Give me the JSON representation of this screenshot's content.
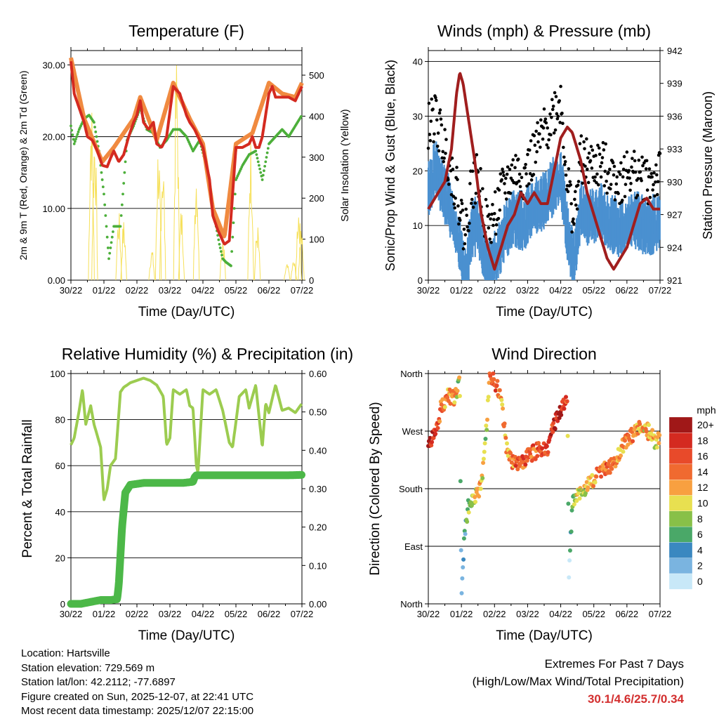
{
  "panels": {
    "temperature": {
      "title": "Temperature (F)",
      "ylabel_left": "2m & 9m T (Red, Orange) & 2m Td (Green)",
      "ylabel_right": "Solar Insolation (Yellow)",
      "xlabel": "Time (Day/UTC)"
    },
    "winds": {
      "title": "Winds (mph) & Pressure (mb)",
      "ylabel_left": "Sonic/Prop Wind & Gust (Blue, Black)",
      "ylabel_right": "Station Pressure (Maroon)",
      "xlabel": "Time (Day/UTC)"
    },
    "humidity": {
      "title": "Relative Humidity (%) & Precipitation (in)",
      "ylabel_left": "Percent & Total Rainfall",
      "xlabel": "Time (Day/UTC)"
    },
    "direction": {
      "title": "Wind Direction",
      "ylabel_left": "Direction (Colored By Speed)",
      "xlabel": "Time (Day/UTC)",
      "legend_title": "mph",
      "legend_labels": [
        "20+",
        "18",
        "16",
        "14",
        "12",
        "10",
        "8",
        "6",
        "4",
        "2",
        "0"
      ]
    }
  },
  "station": {
    "location": "Location: Hartsville",
    "elevation": "Station elevation: 729.569 m",
    "latlon": "Station lat/lon: 42.2112; -77.6897",
    "created": "Figure created on Sun, 2025-12-07, at 22:41 UTC",
    "recent": "Most recent data timestamp: 2025/12/07 22:15:00"
  },
  "extremes": {
    "line1": "Extremes For Past 7 Days",
    "line2": "(High/Low/Max Wind/Total Precipitation)",
    "values": "30.1/4.6/25.7/0.34"
  },
  "colors": {
    "temp2m": "#d42a20",
    "temp9m": "#f08a40",
    "dewpoint": "#4caf3a",
    "solar": "#f6e05a",
    "wind": "#4a90d0",
    "gust": "#000000",
    "pressure": "#a01e1e",
    "rh": "#9ccc50",
    "precip": "#4cb848",
    "speed_scale": [
      "#a01818",
      "#d42a20",
      "#e84a2a",
      "#f06a30",
      "#f8a040",
      "#e8e050",
      "#88c048",
      "#4aa868",
      "#3a88c0",
      "#7ab4e0",
      "#c8e8f8"
    ]
  },
  "chart_data": [
    {
      "type": "line",
      "title": "Temperature (F)",
      "xlabel": "Time (Day/UTC)",
      "ylabel": "2m & 9m T (Red, Orange) & 2m Td (Green)",
      "x_ticks": [
        "30/22",
        "01/22",
        "02/22",
        "03/22",
        "04/22",
        "05/22",
        "06/22",
        "07/22"
      ],
      "x_range": [
        0,
        7
      ],
      "ylim": [
        0,
        32
      ],
      "y_ticks": [
        "0.00",
        "10.00",
        "20.00",
        "30.00"
      ],
      "y_right_label": "Solar Insolation (Yellow)",
      "y_right_lim": [
        0,
        560
      ],
      "y_right_ticks": [
        "0",
        "100",
        "200",
        "300",
        "400",
        "500"
      ],
      "series": [
        {
          "name": "2m T",
          "x": [
            0,
            0.1,
            0.25,
            0.4,
            0.5,
            0.65,
            0.8,
            0.95,
            1.1,
            1.2,
            1.3,
            1.45,
            1.6,
            1.75,
            1.9,
            2.0,
            2.1,
            2.2,
            2.35,
            2.5,
            2.6,
            2.75,
            2.9,
            3.1,
            3.3,
            3.5,
            3.6,
            3.75,
            3.9,
            4.0,
            4.2,
            4.3,
            4.45,
            4.55,
            4.65,
            4.8,
            5.0,
            5.2,
            5.4,
            5.5,
            5.6,
            5.7,
            5.8,
            5.9,
            6.0,
            6.1,
            6.2,
            6.4,
            6.6,
            6.8,
            7.0
          ],
          "values": [
            30.5,
            26,
            24,
            22,
            20,
            19.5,
            18,
            16,
            15.8,
            17,
            18,
            16.5,
            17.5,
            20,
            22,
            23,
            25,
            22,
            21,
            22,
            19,
            18.5,
            20,
            27,
            26,
            23,
            22,
            21,
            19.5,
            18.5,
            14,
            9,
            7,
            6,
            5,
            5.5,
            18.5,
            18.5,
            19,
            20,
            18.5,
            18.5,
            20,
            23,
            26,
            27,
            25.5,
            25.5,
            25.5,
            25,
            27
          ]
        },
        {
          "name": "9m T",
          "x": [
            0,
            0.4,
            0.95,
            1.3,
            1.9,
            2.1,
            2.6,
            3.1,
            3.6,
            4.0,
            4.3,
            4.65,
            5.0,
            5.5,
            6.0,
            6.4,
            6.8,
            7.0
          ],
          "values": [
            31,
            22.5,
            16.5,
            18.5,
            22.5,
            25.5,
            19.5,
            27.5,
            22.5,
            19,
            10,
            6,
            19,
            20.5,
            27.5,
            26,
            25.5,
            27.5
          ]
        },
        {
          "name": "2m Td",
          "x": [
            0,
            0.1,
            0.25,
            0.4,
            0.55,
            0.7,
            0.85,
            1.0,
            1.15,
            1.3,
            1.5,
            1.7,
            1.9,
            2.1,
            2.3,
            2.5,
            2.7,
            2.9,
            3.1,
            3.3,
            3.5,
            3.7,
            3.9,
            4.1,
            4.3,
            4.5,
            4.6,
            4.7,
            4.85,
            5.0,
            5.2,
            5.4,
            5.6,
            5.8,
            6.0,
            6.2,
            6.4,
            6.6,
            6.8,
            7.0
          ],
          "values": [
            21.5,
            19,
            21,
            22.5,
            23,
            22,
            18,
            12,
            3,
            7.5,
            7.5,
            19.5,
            21.5,
            24,
            21,
            20.5,
            18.5,
            19.5,
            21,
            21,
            20,
            18,
            19.5,
            16,
            10,
            5,
            3,
            2.5,
            2,
            14,
            16,
            17.5,
            18,
            14,
            19,
            20,
            21,
            20,
            21.5,
            23
          ]
        }
      ]
    },
    {
      "type": "line",
      "title": "Winds (mph) & Pressure (mb)",
      "xlabel": "Time (Day/UTC)",
      "ylabel": "Sonic/Prop Wind & Gust (Blue, Black)",
      "x_ticks": [
        "30/22",
        "01/22",
        "02/22",
        "03/22",
        "04/22",
        "05/22",
        "06/22",
        "07/22"
      ],
      "x_range": [
        0,
        7
      ],
      "ylim": [
        0,
        42
      ],
      "y_ticks": [
        "0",
        "10",
        "20",
        "30",
        "40"
      ],
      "y_right_label": "Station Pressure (Maroon)",
      "y_right_lim": [
        921,
        942
      ],
      "y_right_ticks": [
        "921",
        "924",
        "927",
        "930",
        "933",
        "936",
        "939",
        "942"
      ],
      "series": [
        {
          "name": "Wind",
          "x": [
            0,
            0.2,
            0.5,
            0.7,
            0.95,
            1.1,
            1.3,
            1.5,
            1.8,
            2.0,
            2.3,
            2.6,
            2.9,
            3.2,
            3.5,
            3.8,
            4.0,
            4.2,
            4.4,
            4.6,
            4.9,
            5.2,
            5.5,
            5.8,
            6.1,
            6.4,
            6.7,
            7.0
          ],
          "values": [
            18,
            22,
            17,
            14,
            8,
            1,
            10,
            12,
            3,
            5,
            10,
            13,
            12,
            15,
            16,
            19,
            21,
            10,
            5,
            14,
            13,
            14,
            12,
            11,
            13,
            12,
            11,
            13
          ]
        },
        {
          "name": "Gust",
          "x": [
            0,
            0.2,
            0.5,
            0.7,
            0.95,
            1.1,
            1.3,
            1.5,
            1.8,
            2.0,
            2.3,
            2.6,
            2.9,
            3.2,
            3.5,
            3.8,
            4.0,
            4.2,
            4.4,
            4.6,
            4.9,
            5.2,
            5.5,
            5.8,
            6.1,
            6.4,
            6.7,
            7.0
          ],
          "values": [
            28,
            30,
            24,
            20,
            14,
            8,
            17,
            19,
            9,
            12,
            17,
            20,
            19,
            23,
            27,
            31,
            33,
            18,
            11,
            22,
            21,
            21,
            20,
            18,
            20,
            19,
            18,
            19
          ]
        },
        {
          "name": "Pressure",
          "x": [
            0,
            0.1,
            0.3,
            0.5,
            0.7,
            0.85,
            0.95,
            1.05,
            1.2,
            1.4,
            1.6,
            1.8,
            2.0,
            2.2,
            2.4,
            2.6,
            2.8,
            3.0,
            3.2,
            3.4,
            3.6,
            3.8,
            4.0,
            4.2,
            4.35,
            4.6,
            4.8,
            5.0,
            5.2,
            5.4,
            5.6,
            5.7,
            5.8,
            6.0,
            6.2,
            6.4,
            6.6,
            6.8,
            7.0
          ],
          "values": [
            927.5,
            928,
            929,
            930,
            933,
            938,
            940,
            939,
            936,
            932,
            927,
            924,
            922,
            924,
            926,
            927,
            929,
            928,
            929,
            928,
            928,
            931,
            934,
            935,
            934.5,
            932,
            929,
            927,
            925,
            923,
            922,
            922.5,
            923,
            924,
            926,
            928,
            928.5,
            927.5,
            927.5
          ]
        }
      ]
    },
    {
      "type": "line",
      "title": "Relative Humidity (%) & Precipitation (in)",
      "xlabel": "Time (Day/UTC)",
      "ylabel": "Percent & Total Rainfall",
      "x_ticks": [
        "30/22",
        "01/22",
        "02/22",
        "03/22",
        "04/22",
        "05/22",
        "06/22",
        "07/22"
      ],
      "x_range": [
        0,
        7
      ],
      "ylim": [
        0,
        100
      ],
      "y_ticks": [
        "0",
        "20",
        "40",
        "60",
        "80",
        "100"
      ],
      "y_right_lim": [
        0,
        0.6
      ],
      "y_right_ticks": [
        "0.00",
        "0.10",
        "0.20",
        "0.30",
        "0.40",
        "0.50",
        "0.60"
      ],
      "series": [
        {
          "name": "Relative Humidity",
          "x": [
            0,
            0.1,
            0.25,
            0.35,
            0.45,
            0.6,
            0.7,
            0.8,
            0.9,
            1.0,
            1.1,
            1.2,
            1.35,
            1.5,
            1.6,
            1.8,
            2.0,
            2.2,
            2.4,
            2.6,
            2.8,
            2.9,
            3.0,
            3.1,
            3.3,
            3.5,
            3.6,
            3.7,
            3.8,
            3.85,
            4.0,
            4.2,
            4.4,
            4.6,
            4.7,
            4.8,
            4.9,
            5.1,
            5.3,
            5.4,
            5.5,
            5.6,
            5.8,
            5.9,
            6.0,
            6.2,
            6.4,
            6.6,
            6.8,
            7.0
          ],
          "values": [
            69,
            72,
            84,
            93,
            78,
            86,
            78,
            73,
            68,
            45,
            50,
            60,
            63,
            92,
            94,
            96,
            97,
            98,
            97,
            95,
            90,
            69,
            72,
            93,
            91,
            93,
            86,
            85,
            60,
            57,
            93,
            91,
            93,
            84,
            77,
            70,
            68,
            90,
            93,
            85,
            90,
            95,
            68,
            87,
            83,
            95,
            84,
            85,
            83,
            87
          ]
        },
        {
          "name": "Total Rainfall (in)",
          "x": [
            0,
            0.3,
            0.6,
            0.9,
            1.2,
            1.4,
            1.45,
            1.55,
            1.65,
            1.8,
            2.2,
            2.6,
            3.0,
            3.4,
            3.7,
            3.75,
            3.8,
            4.2,
            4.6,
            5.0,
            5.4,
            5.8,
            6.2,
            6.6,
            7.0
          ],
          "values": [
            0,
            0,
            0.005,
            0.01,
            0.01,
            0.012,
            0.05,
            0.2,
            0.29,
            0.31,
            0.315,
            0.315,
            0.315,
            0.315,
            0.318,
            0.33,
            0.335,
            0.335,
            0.335,
            0.335,
            0.335,
            0.335,
            0.335,
            0.335,
            0.336
          ]
        }
      ]
    },
    {
      "type": "scatter",
      "title": "Wind Direction",
      "xlabel": "Time (Day/UTC)",
      "ylabel": "Direction (Colored By Speed)",
      "x_ticks": [
        "30/22",
        "01/22",
        "02/22",
        "03/22",
        "04/22",
        "05/22",
        "06/22",
        "07/22"
      ],
      "x_range": [
        0,
        7
      ],
      "y_ticks": [
        "North",
        "East",
        "South",
        "West",
        "North"
      ],
      "ylim": [
        0,
        360
      ],
      "legend_title": "mph",
      "color_scale_labels": [
        "20+",
        "18",
        "16",
        "14",
        "12",
        "10",
        "8",
        "6",
        "4",
        "2",
        "0"
      ],
      "series": [
        {
          "name": "Direction",
          "x": [
            0,
            0.2,
            0.4,
            0.6,
            0.8,
            0.95,
            1.0,
            1.05,
            1.1,
            1.2,
            1.4,
            1.6,
            1.75,
            1.85,
            2.0,
            2.2,
            2.4,
            2.6,
            2.8,
            3.0,
            3.3,
            3.6,
            3.85,
            4.0,
            4.2,
            4.25,
            4.35,
            4.5,
            4.7,
            4.9,
            5.1,
            5.3,
            5.5,
            5.7,
            5.9,
            6.1,
            6.3,
            6.5,
            6.7,
            6.9,
            7.0
          ],
          "values": [
            250,
            265,
            310,
            325,
            320,
            345,
            10,
            70,
            110,
            150,
            170,
            180,
            270,
            360,
            350,
            320,
            230,
            220,
            220,
            230,
            240,
            245,
            285,
            300,
            320,
            40,
            160,
            170,
            180,
            190,
            200,
            210,
            215,
            225,
            250,
            260,
            275,
            280,
            265,
            250,
            265
          ],
          "speeds": [
            18,
            18,
            14,
            12,
            12,
            8,
            2,
            4,
            4,
            6,
            10,
            12,
            8,
            14,
            16,
            12,
            12,
            14,
            16,
            14,
            16,
            16,
            18,
            20,
            14,
            2,
            6,
            10,
            10,
            10,
            14,
            14,
            16,
            12,
            12,
            14,
            12,
            12,
            10,
            12,
            10
          ]
        }
      ]
    }
  ]
}
